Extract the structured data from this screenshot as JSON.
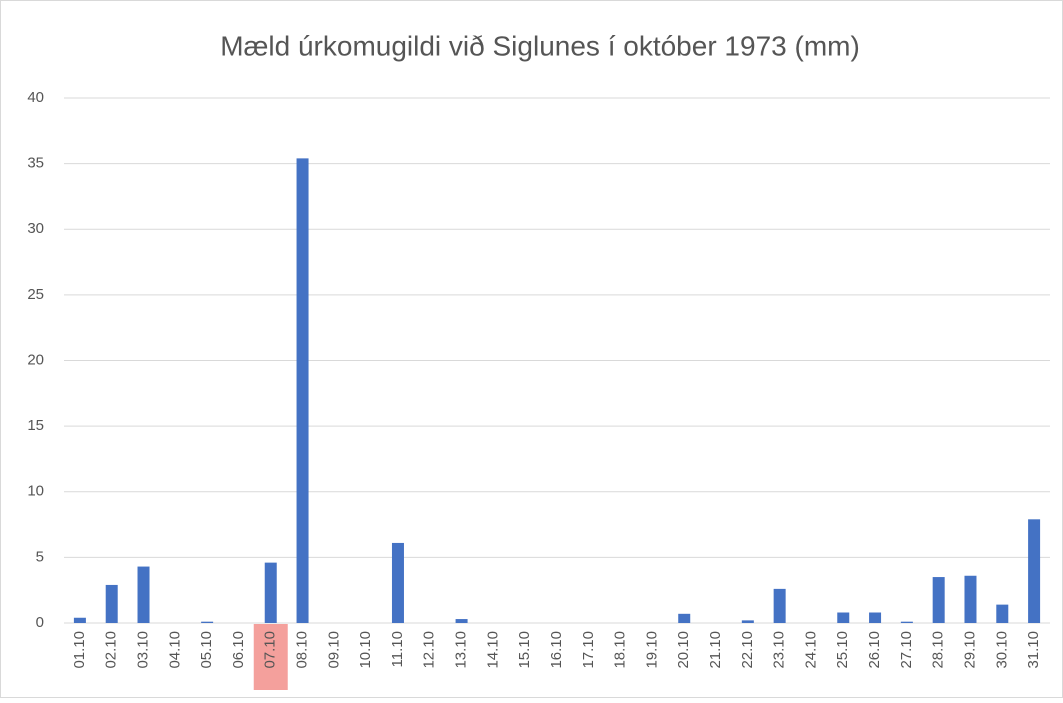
{
  "chart_data": {
    "type": "bar",
    "title": "Mæld úrkomugildi við Siglunes í október 1973 (mm)",
    "categories": [
      "01.10",
      "02.10",
      "03.10",
      "04.10",
      "05.10",
      "06.10",
      "07.10",
      "08.10",
      "09.10",
      "10.10",
      "11.10",
      "12.10",
      "13.10",
      "14.10",
      "15.10",
      "16.10",
      "17.10",
      "18.10",
      "19.10",
      "20.10",
      "21.10",
      "22.10",
      "23.10",
      "24.10",
      "25.10",
      "26.10",
      "27.10",
      "28.10",
      "29.10",
      "30.10",
      "31.10"
    ],
    "values": [
      0.4,
      2.9,
      4.3,
      0,
      0.1,
      0,
      4.6,
      35.4,
      0,
      0,
      6.1,
      0,
      0.3,
      0,
      0,
      0,
      0,
      0,
      0,
      0.7,
      0,
      0.2,
      2.6,
      0,
      0.8,
      0.8,
      0.1,
      3.5,
      3.6,
      1.4,
      7.9
    ],
    "color": "#4472c4",
    "ylim": [
      0,
      40
    ],
    "yticks": [
      0,
      5,
      10,
      15,
      20,
      25,
      30,
      35,
      40
    ],
    "grid": true,
    "highlight_category": "07.10",
    "highlight_color": "#f4a09c"
  }
}
